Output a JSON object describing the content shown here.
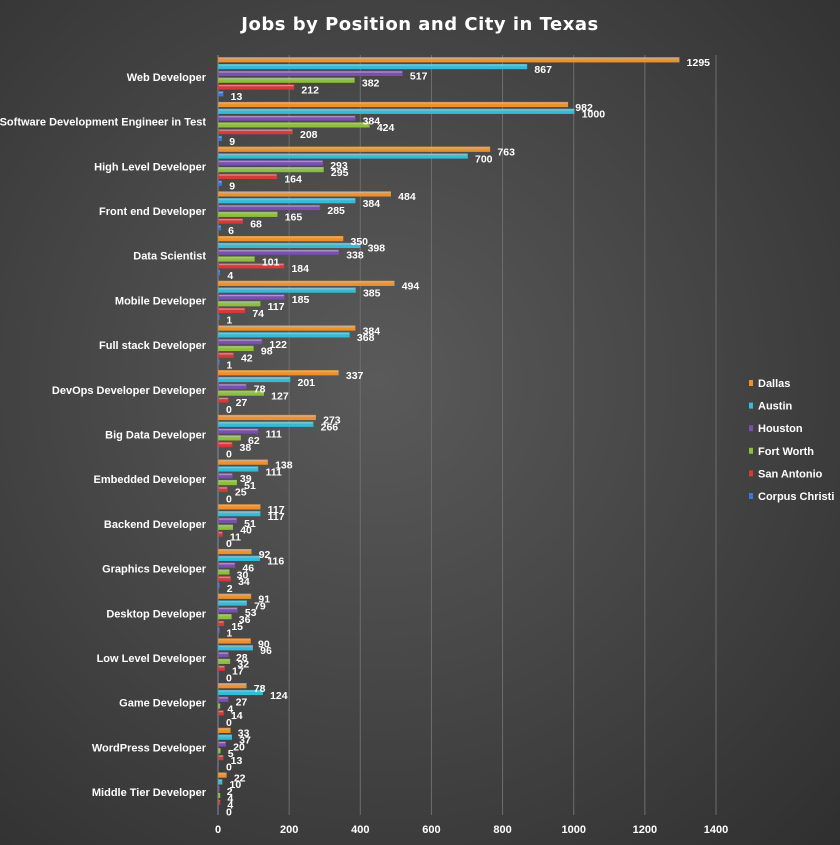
{
  "chart_data": {
    "type": "bar",
    "orientation": "horizontal",
    "title": "Jobs by Position and City in Texas",
    "categories": [
      "Web Developer",
      "Software Development Engineer in Test",
      "High Level Developer",
      "Front end Developer",
      "Data Scientist",
      "Mobile Developer",
      "Full stack Developer",
      "DevOps Developer Developer",
      "Big Data Developer",
      "Embedded Developer",
      "Backend Developer",
      "Graphics Developer",
      "Desktop Developer",
      "Low Level Developer",
      "Game Developer",
      "WordPress Developer",
      "Middle Tier Developer"
    ],
    "series": [
      {
        "name": "Dallas",
        "color": "#f0902a",
        "values": [
          1295,
          982,
          763,
          484,
          350,
          494,
          384,
          337,
          273,
          138,
          117,
          92,
          91,
          90,
          78,
          33,
          22
        ]
      },
      {
        "name": "Austin",
        "color": "#33bcd8",
        "values": [
          867,
          1000,
          700,
          384,
          398,
          385,
          368,
          201,
          266,
          111,
          117,
          116,
          79,
          96,
          124,
          37,
          10
        ]
      },
      {
        "name": "Houston",
        "color": "#7a4fb2",
        "values": [
          517,
          384,
          293,
          285,
          338,
          185,
          122,
          78,
          111,
          39,
          51,
          46,
          53,
          28,
          27,
          20,
          2
        ]
      },
      {
        "name": "Fort Worth",
        "color": "#8cbf3a",
        "values": [
          382,
          424,
          295,
          165,
          101,
          117,
          98,
          127,
          62,
          51,
          40,
          30,
          36,
          32,
          4,
          5,
          4
        ]
      },
      {
        "name": "San Antonio",
        "color": "#d83838",
        "values": [
          212,
          208,
          164,
          68,
          184,
          74,
          42,
          27,
          38,
          25,
          11,
          34,
          15,
          17,
          14,
          13,
          4
        ]
      },
      {
        "name": "Corpus Christi",
        "color": "#3a78d8",
        "values": [
          13,
          9,
          9,
          6,
          4,
          1,
          1,
          0,
          0,
          0,
          0,
          2,
          1,
          0,
          0,
          0,
          0
        ]
      }
    ],
    "xlim": [
      0,
      1400
    ],
    "xticks": [
      0,
      200,
      400,
      600,
      800,
      1000,
      1200,
      1400
    ],
    "grid": true,
    "legend": "right",
    "xlabel": "",
    "ylabel": ""
  }
}
